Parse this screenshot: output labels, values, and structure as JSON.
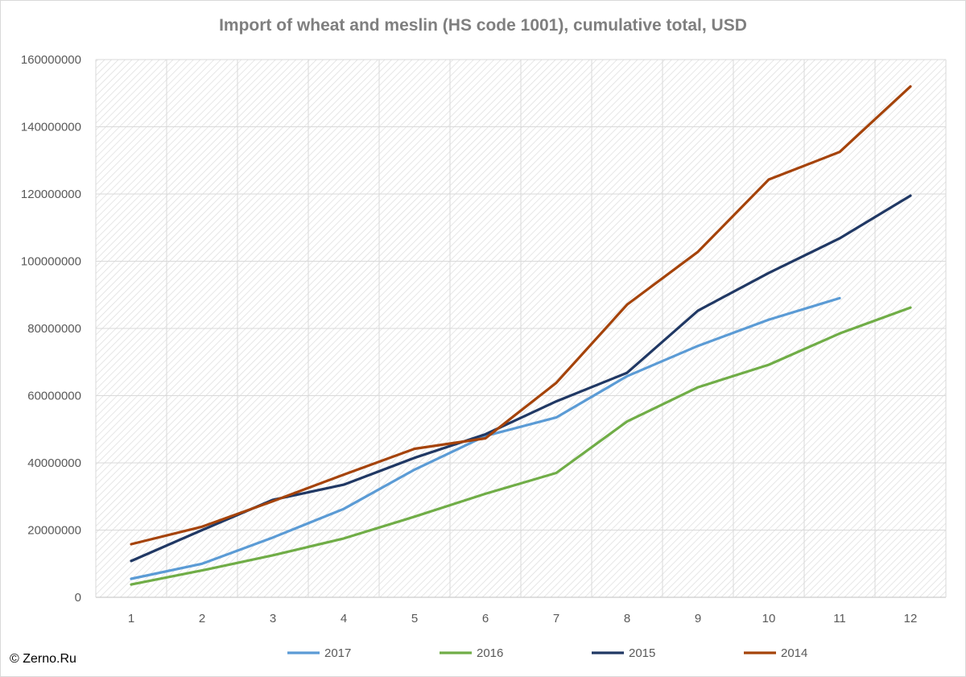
{
  "chart_data": {
    "type": "line",
    "title": "Import of wheat and meslin (HS code 1001), cumulative total, USD",
    "x": [
      1,
      2,
      3,
      4,
      5,
      6,
      7,
      8,
      9,
      10,
      11,
      12
    ],
    "ylim": [
      0,
      160000000
    ],
    "yticks": [
      0,
      20000000,
      40000000,
      60000000,
      80000000,
      100000000,
      120000000,
      140000000,
      160000000
    ],
    "grid": true,
    "legend_position": "bottom",
    "series": [
      {
        "name": "2017",
        "color": "#5b9bd5",
        "values": [
          5500000,
          10000000,
          17800000,
          26300000,
          38000000,
          48000000,
          53500000,
          65800000,
          74800000,
          82600000,
          89000000,
          null
        ]
      },
      {
        "name": "2016",
        "color": "#70ad47",
        "values": [
          3800000,
          8000000,
          12500000,
          17500000,
          24000000,
          30800000,
          37000000,
          52300000,
          62500000,
          69200000,
          78500000,
          86200000
        ]
      },
      {
        "name": "2015",
        "color": "#203864",
        "values": [
          10800000,
          20000000,
          29000000,
          33500000,
          41500000,
          48500000,
          58300000,
          66800000,
          85300000,
          96500000,
          106800000,
          119500000
        ]
      },
      {
        "name": "2014",
        "color": "#a5430a",
        "values": [
          15800000,
          21000000,
          28600000,
          36500000,
          44200000,
          47300000,
          63800000,
          87100000,
          102800000,
          124300000,
          132500000,
          152000000
        ]
      }
    ]
  },
  "credit": "© Zerno.Ru"
}
